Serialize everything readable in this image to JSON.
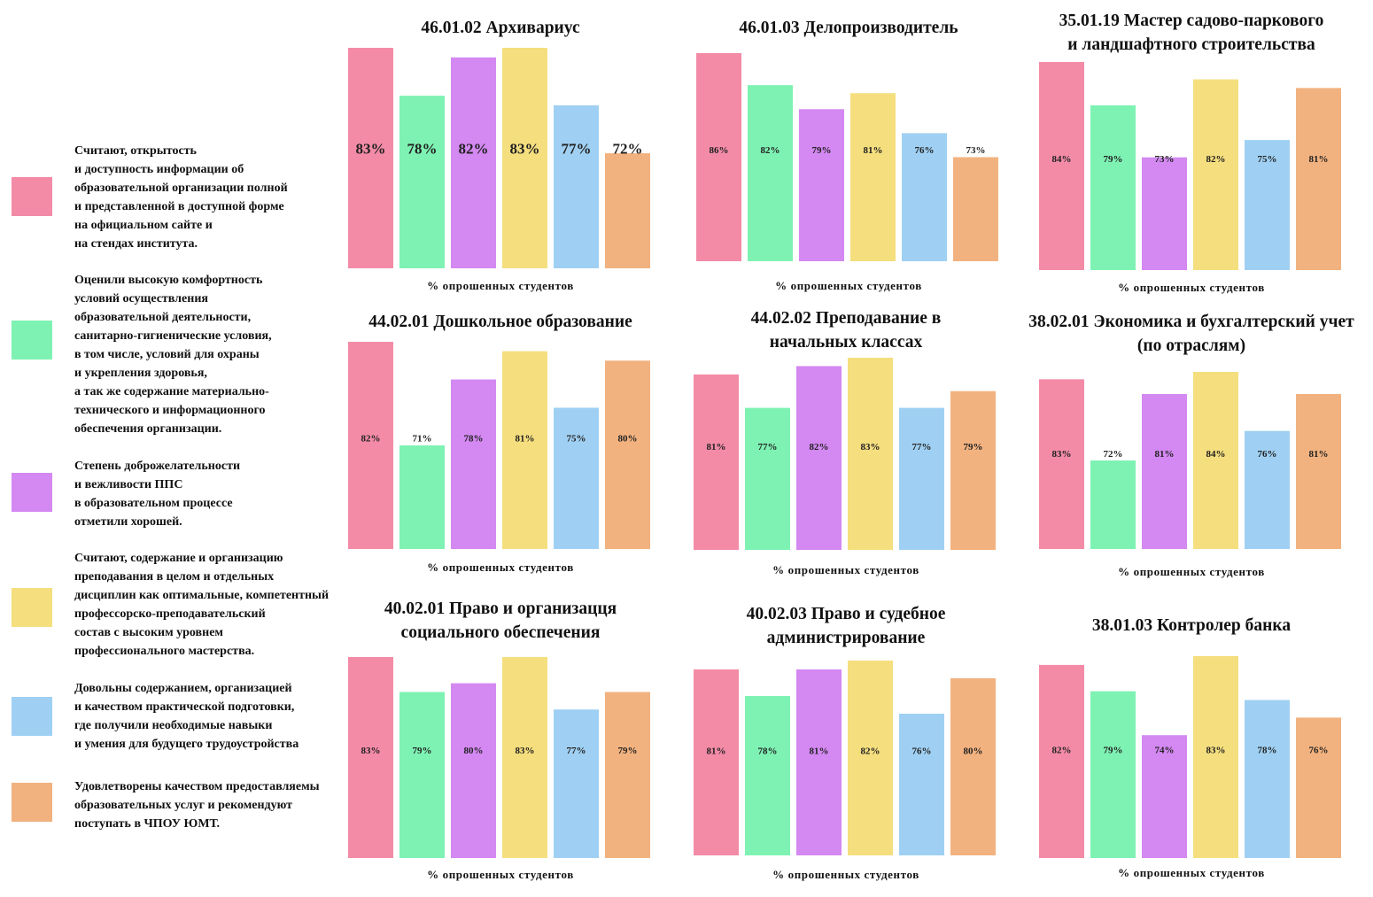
{
  "colors": [
    "#f38ba7",
    "#7ef2b3",
    "#d488f2",
    "#f5de7e",
    "#9fd0f3",
    "#f2b27f"
  ],
  "legend": [
    "Считают, открытость\nи доступность информации об\nобразовательной организации полной\nи представленной в доступной форме\nна официальном сайте и\nна стендах института.",
    "Оценили высокую комфортность\nусловий осуществления\nобразовательной деятельности,\nсанитарно-гигиенические условия,\nв том числе,  условий для охраны\nи укрепления здоровья,\nа так же содержание материально-\nтехнического и информационного\nобеспечения организации.",
    "Степень доброжелательности\nи вежливости ППС\nв образовательном процессе\nотметили хорошей.",
    "Считают, содержание и организацию\nпреподавания в целом и отдельных\nдисциплин как оптимальные, компетентный\nпрофессорско-преподавательский\nсостав с высоким уровнем\nпрофессионального мастерства.",
    "Довольны содержанием, организацией\nи качеством практической подготовки,\nгде получили необходимые навыки\nи умения для будущего трудоустройства",
    "Удовлетворены качеством предоставляемы\nобразовательных услуг  и рекомендуют\nпоступать в ЧПОУ ЮМТ."
  ],
  "chart_data": [
    {
      "type": "bar",
      "title": "46.01.02 Архивариус",
      "xlabel": "% опрошенных студентов",
      "values": [
        83,
        78,
        82,
        83,
        77,
        72
      ],
      "value_labels": [
        "83%",
        "78%",
        "82%",
        "83%",
        "77%",
        "72%"
      ]
    },
    {
      "type": "bar",
      "title": "46.01.03 Делопроизводитель",
      "xlabel": "% опрошенных студентов",
      "values": [
        86,
        82,
        79,
        81,
        76,
        73
      ],
      "value_labels": [
        "86%",
        "82%",
        "79%",
        "81%",
        "76%",
        "73%"
      ]
    },
    {
      "type": "bar",
      "title": "35.01.19 Мастер садово-паркового\nи ландшафтного строительства",
      "xlabel": "% опрошенных студентов",
      "values": [
        84,
        79,
        73,
        82,
        75,
        81
      ],
      "value_labels": [
        "84%",
        "79%",
        "73%",
        "82%",
        "75%",
        "81%"
      ]
    },
    {
      "type": "bar",
      "title": "44.02.01 Дошкольное образование",
      "xlabel": "% опрошенных студентов",
      "values": [
        82,
        71,
        78,
        81,
        75,
        80
      ],
      "value_labels": [
        "82%",
        "71%",
        "78%",
        "81%",
        "75%",
        "80%"
      ]
    },
    {
      "type": "bar",
      "title": "44.02.02 Преподавание в\nначальных классах",
      "xlabel": "% опрошенных студентов",
      "values": [
        81,
        77,
        82,
        83,
        77,
        79
      ],
      "value_labels": [
        "81%",
        "77%",
        "82%",
        "83%",
        "77%",
        "79%"
      ]
    },
    {
      "type": "bar",
      "title": "38.02.01 Экономика и бухгалтерский учет\n(по отраслям)",
      "xlabel": "% опрошенных студентов",
      "values": [
        83,
        72,
        81,
        84,
        76,
        81
      ],
      "value_labels": [
        "83%",
        "72%",
        "81%",
        "84%",
        "76%",
        "81%"
      ]
    },
    {
      "type": "bar",
      "title": "40.02.01 Право и организацця\nсоциального обеспечения",
      "xlabel": "% опрошенных студентов",
      "values": [
        83,
        79,
        80,
        83,
        77,
        79
      ],
      "value_labels": [
        "83%",
        "79%",
        "80%",
        "83%",
        "77%",
        "79%"
      ]
    },
    {
      "type": "bar",
      "title": "40.02.03 Право и судебное\nадминистрирование",
      "xlabel": "% опрошенных студентов",
      "values": [
        81,
        78,
        81,
        82,
        76,
        80
      ],
      "value_labels": [
        "81%",
        "78%",
        "81%",
        "82%",
        "76%",
        "80%"
      ]
    },
    {
      "type": "bar",
      "title": "38.01.03 Контролер банка",
      "xlabel": "% опрошенных студентов",
      "values": [
        82,
        79,
        74,
        83,
        78,
        76
      ],
      "value_labels": [
        "82%",
        "79%",
        "74%",
        "83%",
        "78%",
        "76%"
      ]
    }
  ]
}
